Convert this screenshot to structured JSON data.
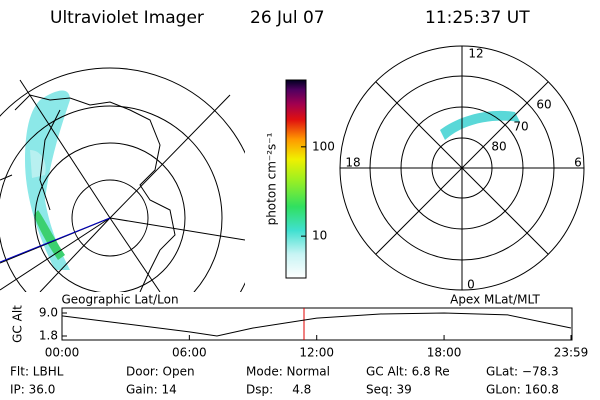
{
  "header": {
    "title": "Ultraviolet Imager",
    "date": "26 Jul 07",
    "time": "11:25:37 UT"
  },
  "geo_panel": {
    "title": "Geographic Lat/Lon"
  },
  "mag_panel": {
    "title": "Apex MLat/MLT",
    "mlt_labels": [
      "12",
      "18",
      "6",
      "0"
    ],
    "lat_labels": [
      "80",
      "70",
      "60"
    ]
  },
  "colorbar": {
    "label": "photon cm⁻²s⁻¹",
    "lim": [
      3.4,
      560
    ],
    "log": true,
    "ticks": [
      10,
      100
    ]
  },
  "chart_data": {
    "type": "line",
    "ylabel": "GC Alt",
    "x": [
      0,
      3,
      6,
      7.3,
      9,
      12,
      15,
      18,
      21,
      23.98
    ],
    "series": [
      {
        "name": "GC Alt",
        "color": "#000000",
        "values": [
          8.1,
          5.6,
          3.1,
          1.8,
          4.3,
          7.4,
          8.7,
          9.0,
          8.4,
          4.3
        ]
      }
    ],
    "xlim": [
      0,
      23.98
    ],
    "xticks": [
      {
        "value": 0,
        "label": "00:00"
      },
      {
        "value": 6,
        "label": "06:00"
      },
      {
        "value": 12,
        "label": "12:00"
      },
      {
        "value": 18,
        "label": "18:00"
      },
      {
        "value": 23.98,
        "label": "23:59"
      }
    ],
    "ylim": [
      1.8,
      9.0
    ],
    "yticks": [
      {
        "value": 1.8,
        "label": "1.8"
      },
      {
        "value": 9.0,
        "label": "9.0"
      }
    ]
  },
  "status": {
    "row1": [
      "Flt: LBHL",
      "Door: Open",
      "Mode: Normal",
      "GC Alt: 6.8 Re",
      "GLat: −78.3"
    ],
    "row2": [
      "IP: 36.0",
      "Gain: 14",
      "Dsp:     4.8",
      "Seq: 39",
      "GLon: 160.8"
    ]
  }
}
